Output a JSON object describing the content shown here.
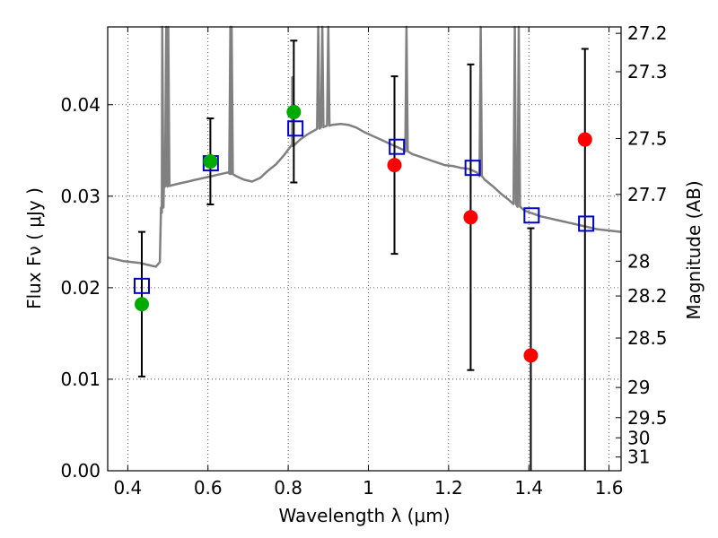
{
  "chart_data": {
    "type": "scatter",
    "xlabel": "Wavelength  λ (μm)",
    "ylabel": "Flux  Fν  ( μJy )",
    "ylabel_right": "Magnitude (AB)",
    "xlim": [
      0.35,
      1.63
    ],
    "ylim": [
      0.0,
      0.0485
    ],
    "grid": true,
    "x_ticks": [
      0.4,
      0.6,
      0.8,
      1.0,
      1.2,
      1.4,
      1.6
    ],
    "x_tick_labels": [
      "0.4",
      "0.6",
      "0.8",
      "1",
      "1.2",
      "1.4",
      "1.6"
    ],
    "y_ticks": [
      0.0,
      0.01,
      0.02,
      0.03,
      0.04
    ],
    "y_tick_labels": [
      "0.00",
      "0.01",
      "0.02",
      "0.03",
      "0.04"
    ],
    "right_ticks": [
      {
        "label": "27.2",
        "flux": 0.0478
      },
      {
        "label": "27.3",
        "flux": 0.0436
      },
      {
        "label": "27.5",
        "flux": 0.0363
      },
      {
        "label": "27.7",
        "flux": 0.0302
      },
      {
        "label": "28",
        "flux": 0.0229
      },
      {
        "label": "28.2",
        "flux": 0.0191
      },
      {
        "label": "28.5",
        "flux": 0.0145
      },
      {
        "label": "29",
        "flux": 0.0091
      },
      {
        "label": "29.5",
        "flux": 0.0058
      },
      {
        "label": "30",
        "flux": 0.0036
      },
      {
        "label": "31",
        "flux": 0.0015
      }
    ],
    "observed": [
      {
        "x": 0.435,
        "y": 0.0182,
        "color": "#00aa00"
      },
      {
        "x": 0.606,
        "y": 0.0338,
        "color": "#00aa00"
      },
      {
        "x": 0.814,
        "y": 0.0392,
        "color": "#00aa00"
      },
      {
        "x": 1.065,
        "y": 0.0334,
        "color": "#ff0000"
      },
      {
        "x": 1.255,
        "y": 0.0277,
        "color": "#ff0000"
      },
      {
        "x": 1.405,
        "y": 0.0126,
        "color": "#ff0000"
      },
      {
        "x": 1.54,
        "y": 0.0362,
        "color": "#ff0000"
      }
    ],
    "errorbars": [
      {
        "x": 0.435,
        "lo": 0.0103,
        "hi": 0.0261
      },
      {
        "x": 0.606,
        "lo": 0.0291,
        "hi": 0.0385
      },
      {
        "x": 0.814,
        "lo": 0.0315,
        "hi": 0.047
      },
      {
        "x": 1.065,
        "lo": 0.0237,
        "hi": 0.0431
      },
      {
        "x": 1.255,
        "lo": 0.011,
        "hi": 0.0444
      },
      {
        "x": 1.405,
        "lo": 0.0,
        "hi": 0.0265
      },
      {
        "x": 1.54,
        "lo": 0.0,
        "hi": 0.0461
      }
    ],
    "model_points": [
      {
        "x": 0.435,
        "y": 0.0202
      },
      {
        "x": 0.607,
        "y": 0.0336
      },
      {
        "x": 0.818,
        "y": 0.0374
      },
      {
        "x": 1.071,
        "y": 0.0354
      },
      {
        "x": 1.26,
        "y": 0.0331
      },
      {
        "x": 1.407,
        "y": 0.0279
      },
      {
        "x": 1.543,
        "y": 0.027
      }
    ],
    "model_spectrum": [
      [
        0.35,
        0.0233
      ],
      [
        0.37,
        0.0231
      ],
      [
        0.39,
        0.0229
      ],
      [
        0.41,
        0.0228
      ],
      [
        0.43,
        0.0227
      ],
      [
        0.45,
        0.0225
      ],
      [
        0.47,
        0.0223
      ],
      [
        0.48,
        0.0228
      ],
      [
        0.485,
        0.0282
      ],
      [
        0.49,
        0.031
      ],
      [
        0.51,
        0.0312
      ],
      [
        0.53,
        0.0314
      ],
      [
        0.55,
        0.0316
      ],
      [
        0.57,
        0.0318
      ],
      [
        0.59,
        0.032
      ],
      [
        0.61,
        0.0322
      ],
      [
        0.63,
        0.0324
      ],
      [
        0.65,
        0.0326
      ],
      [
        0.67,
        0.0322
      ],
      [
        0.69,
        0.0318
      ],
      [
        0.71,
        0.0316
      ],
      [
        0.73,
        0.032
      ],
      [
        0.75,
        0.0328
      ],
      [
        0.77,
        0.0335
      ],
      [
        0.79,
        0.0345
      ],
      [
        0.81,
        0.0355
      ],
      [
        0.83,
        0.0362
      ],
      [
        0.85,
        0.0368
      ],
      [
        0.87,
        0.0373
      ],
      [
        0.89,
        0.0376
      ],
      [
        0.91,
        0.0378
      ],
      [
        0.93,
        0.0379
      ],
      [
        0.95,
        0.0378
      ],
      [
        0.97,
        0.0375
      ],
      [
        0.99,
        0.037
      ],
      [
        1.01,
        0.0366
      ],
      [
        1.03,
        0.0362
      ],
      [
        1.05,
        0.0358
      ],
      [
        1.07,
        0.0354
      ],
      [
        1.09,
        0.035
      ],
      [
        1.11,
        0.0346
      ],
      [
        1.13,
        0.0343
      ],
      [
        1.15,
        0.034
      ],
      [
        1.17,
        0.0337
      ],
      [
        1.19,
        0.0334
      ],
      [
        1.21,
        0.0333
      ],
      [
        1.23,
        0.0331
      ],
      [
        1.25,
        0.033
      ],
      [
        1.27,
        0.0326
      ],
      [
        1.29,
        0.0318
      ],
      [
        1.31,
        0.0311
      ],
      [
        1.33,
        0.0303
      ],
      [
        1.35,
        0.0296
      ],
      [
        1.37,
        0.029
      ],
      [
        1.39,
        0.0284
      ],
      [
        1.41,
        0.0281
      ],
      [
        1.43,
        0.0278
      ],
      [
        1.45,
        0.0276
      ],
      [
        1.47,
        0.0274
      ],
      [
        1.49,
        0.0272
      ],
      [
        1.51,
        0.027
      ],
      [
        1.53,
        0.0268
      ],
      [
        1.55,
        0.0266
      ],
      [
        1.57,
        0.0264
      ],
      [
        1.59,
        0.0263
      ],
      [
        1.61,
        0.0262
      ],
      [
        1.63,
        0.0261
      ]
    ],
    "model_spikes": [
      {
        "x": 0.486,
        "y": 0.049
      },
      {
        "x": 0.496,
        "y": 0.049
      },
      {
        "x": 0.501,
        "y": 0.049
      },
      {
        "x": 0.656,
        "y": 0.049
      },
      {
        "x": 0.659,
        "y": 0.049
      },
      {
        "x": 0.81,
        "y": 0.043
      },
      {
        "x": 0.875,
        "y": 0.049
      },
      {
        "x": 0.885,
        "y": 0.049
      },
      {
        "x": 0.9,
        "y": 0.049
      },
      {
        "x": 1.095,
        "y": 0.049
      },
      {
        "x": 1.28,
        "y": 0.049
      },
      {
        "x": 1.365,
        "y": 0.049
      },
      {
        "x": 1.375,
        "y": 0.049
      }
    ],
    "colors": {
      "model_line": "#808080",
      "model_points": "#0000cc",
      "errorbar": "#000000",
      "grid": "#000000"
    }
  }
}
